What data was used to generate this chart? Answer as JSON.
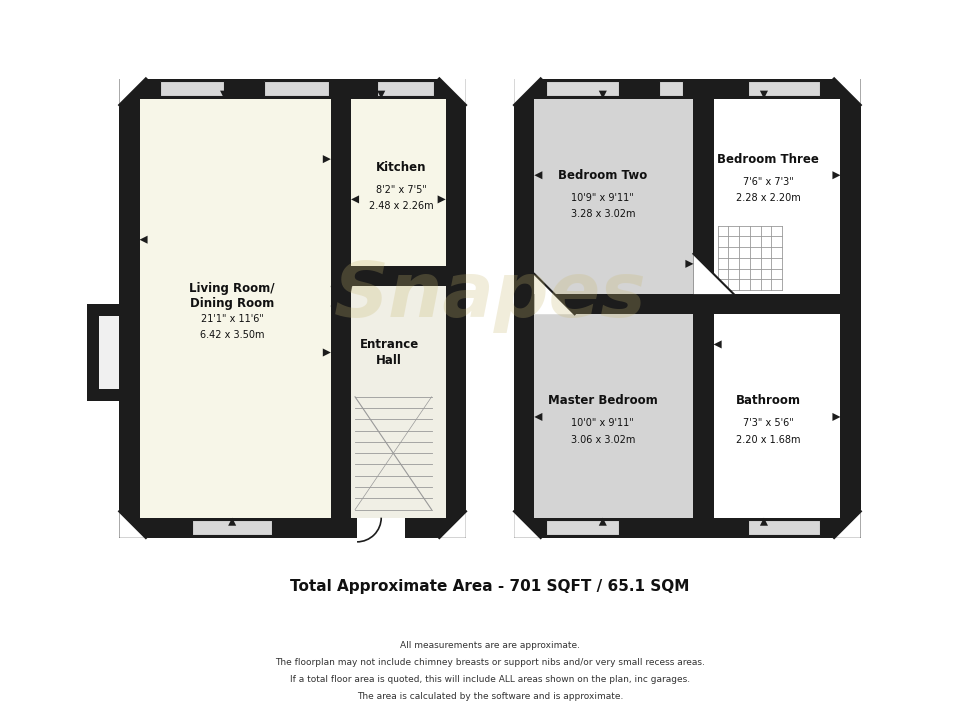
{
  "bg_color": "#ffffff",
  "wall_color": "#1c1c1c",
  "floor_living": "#f7f6e8",
  "floor_kitchen": "#f7f6e8",
  "floor_hall": "#f7f6e8",
  "floor_bedroom": "#d4d4d4",
  "floor_white": "#ffffff",
  "title_text": "Total Approximate Area - 701 SQFT / 65.1 SQM",
  "footnote_lines": [
    "All measurements are are approximate.",
    "The floorplan may not include chimney breasts or support nibs and/or very small recess areas.",
    "If a total floor area is quoted, this will include ALL areas shown on the plan, inc garages.",
    "The area is calculated by the software and is approximate."
  ],
  "watermark": "Snapes",
  "rooms": {
    "living": {
      "label": "Living Room/\nDining Room",
      "dims": "21'1\" x 11'6\"",
      "metric": "6.42 x 3.50m"
    },
    "kitchen": {
      "label": "Kitchen",
      "dims": "8'2\" x 7'5\"",
      "metric": "2.48 x 2.26m"
    },
    "hall": {
      "label": "Entrance\nHall",
      "dims": "",
      "metric": ""
    },
    "bed2": {
      "label": "Bedroom Two",
      "dims": "10'9\" x 9'11\"",
      "metric": "3.28 x 3.02m"
    },
    "bed3": {
      "label": "Bedroom Three",
      "dims": "7'6\" x 7'3\"",
      "metric": "2.28 x 2.20m"
    },
    "master": {
      "label": "Master Bedroom",
      "dims": "10'0\" x 9'11\"",
      "metric": "3.06 x 3.02m"
    },
    "bath": {
      "label": "Bathroom",
      "dims": "7'3\" x 5'6\"",
      "metric": "2.20 x 1.68m"
    }
  }
}
